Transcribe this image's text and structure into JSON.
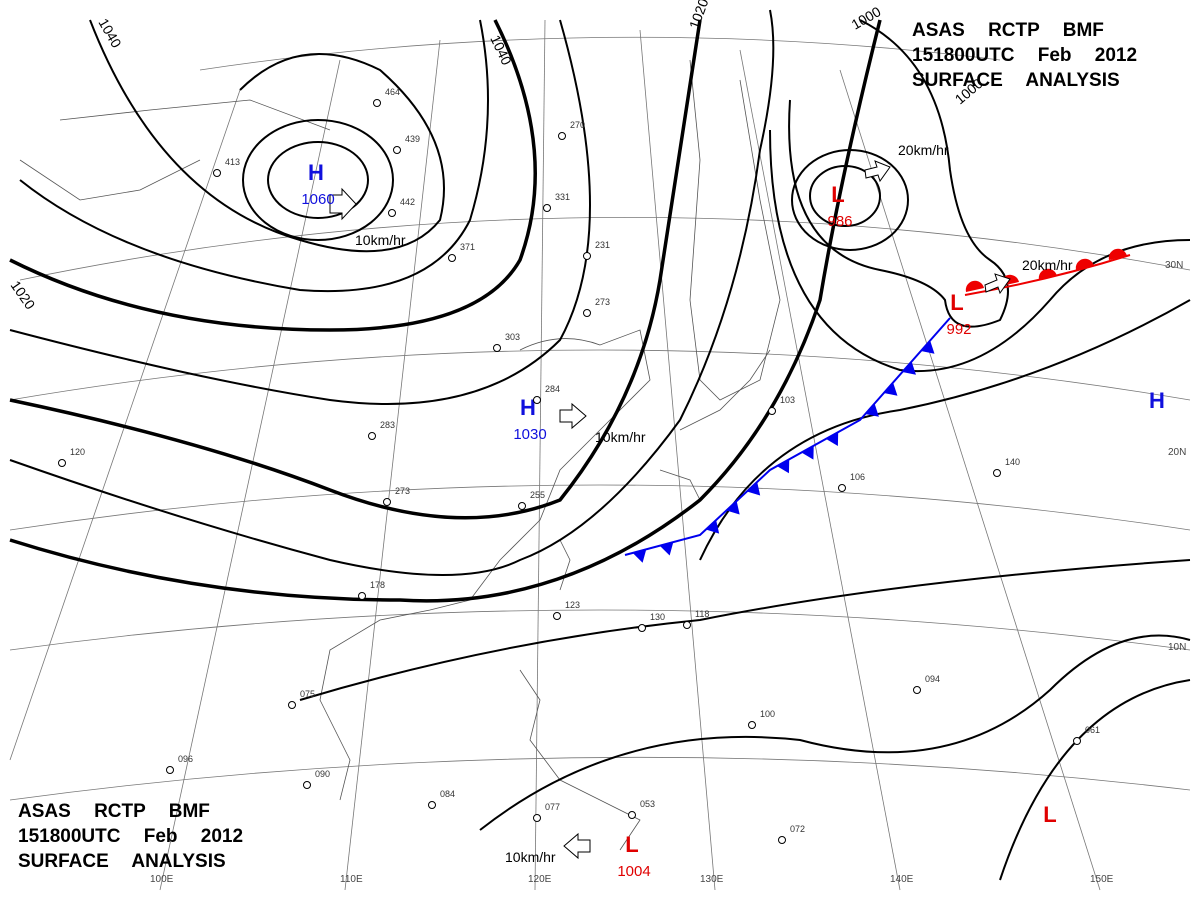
{
  "header": {
    "lines": [
      "ASAS RCTP BMF",
      "151800UTC Feb 2012",
      "SURFACE ANALYSIS"
    ]
  },
  "footer": {
    "lines": [
      "ASAS RCTP BMF",
      "151800UTC Feb 2012",
      "SURFACE ANALYSIS"
    ]
  },
  "centers": [
    {
      "symbol": "H",
      "value": 1060
    },
    {
      "symbol": "H",
      "value": 1030
    },
    {
      "symbol": "L",
      "value": 986
    },
    {
      "symbol": "L",
      "value": 992
    },
    {
      "symbol": "L",
      "value": 1004
    },
    {
      "symbol": "H"
    },
    {
      "symbol": "L"
    }
  ],
  "isobar_labels": [
    "1040",
    "1040",
    "1020",
    "1020",
    "1000",
    "1000"
  ],
  "motion_labels": [
    "10km/hr",
    "10km/hr",
    "10km/hr",
    "20km/hr",
    "20km/hr"
  ],
  "latitude_labels": [
    "30N",
    "20N",
    "10N"
  ],
  "longitude_labels": [
    "100E",
    "110E",
    "120E",
    "130E",
    "140E",
    "150E"
  ],
  "stations": [
    "464",
    "439",
    "413",
    "442",
    "371",
    "331",
    "270",
    "231",
    "273",
    "303",
    "284",
    "283",
    "273",
    "255",
    "178",
    "123",
    "118",
    "130",
    "140",
    "106",
    "103",
    "094",
    "100",
    "090",
    "084",
    "077",
    "053",
    "072",
    "061",
    "075",
    "096",
    "120"
  ]
}
